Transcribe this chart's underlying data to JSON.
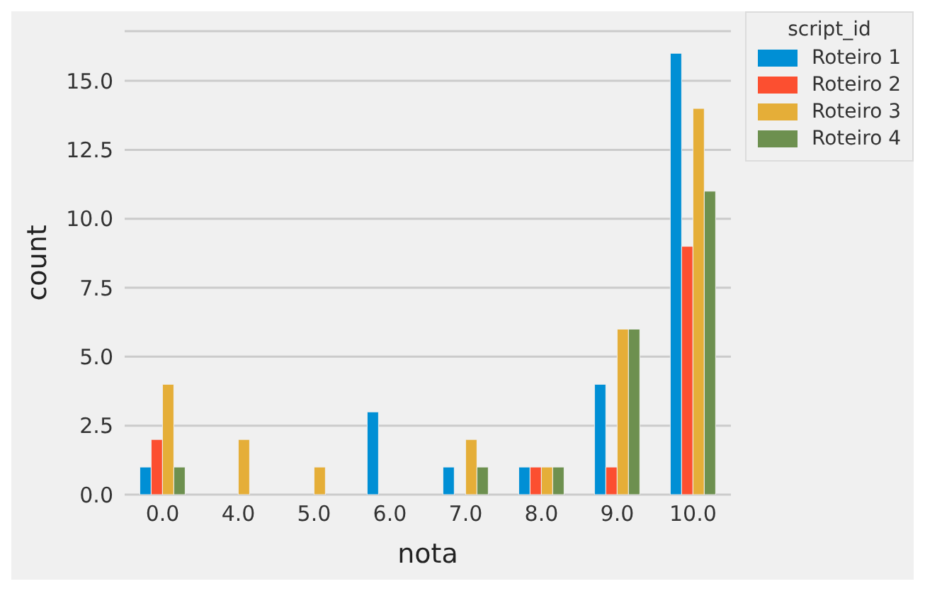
{
  "chart_data": {
    "type": "bar",
    "xlabel": "nota",
    "ylabel": "count",
    "legend_title": "script_id",
    "categories": [
      "0.0",
      "4.0",
      "5.0",
      "6.0",
      "7.0",
      "8.0",
      "9.0",
      "10.0"
    ],
    "series": [
      {
        "name": "Roteiro 1",
        "color": "#008fd5",
        "values": [
          1,
          0,
          0,
          3,
          1,
          1,
          4,
          16
        ]
      },
      {
        "name": "Roteiro 2",
        "color": "#fc4f30",
        "values": [
          2,
          0,
          0,
          0,
          0,
          1,
          1,
          9
        ]
      },
      {
        "name": "Roteiro 3",
        "color": "#e5ae38",
        "values": [
          4,
          2,
          1,
          0,
          2,
          1,
          6,
          14
        ]
      },
      {
        "name": "Roteiro 4",
        "color": "#6d904f",
        "values": [
          1,
          0,
          0,
          0,
          1,
          1,
          6,
          11
        ]
      }
    ],
    "ylim": [
      0,
      16.8
    ],
    "yticks": [
      {
        "value": 0,
        "label": "0.0"
      },
      {
        "value": 2.5,
        "label": "2.5"
      },
      {
        "value": 5,
        "label": "5.0"
      },
      {
        "value": 7.5,
        "label": "7.5"
      },
      {
        "value": 10,
        "label": "10.0"
      },
      {
        "value": 12.5,
        "label": "12.5"
      },
      {
        "value": 15,
        "label": "15.0"
      }
    ],
    "grid": "y",
    "legend": "top right"
  }
}
